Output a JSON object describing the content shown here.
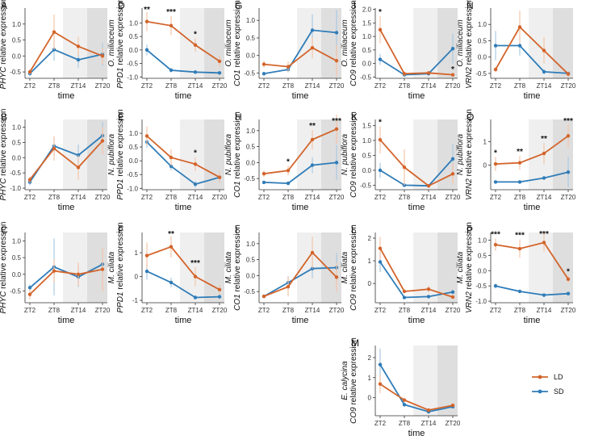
{
  "figure": {
    "xlabel": "time",
    "colors": {
      "LD": "#d3642b",
      "SD": "#2f7cb8",
      "shade_light": "#efefef",
      "shade_dark": "#dedede",
      "error": "#f5c4a7",
      "error_sd": "#a9c9e3"
    },
    "legend": [
      {
        "name": "LD",
        "label": "LD",
        "color": "#d3642b"
      },
      {
        "name": "SD",
        "label": "SD",
        "color": "#2f7cb8"
      }
    ]
  },
  "chart_data": [
    {
      "type": "line",
      "panel": "A",
      "species": "O. miliaceum",
      "gene": "PHYC",
      "ylabel_species": "O. miliaceum",
      "ylabel_gene": "PHYC",
      "ylabel_suffix": " relative expression",
      "categories": [
        "ZT2",
        "ZT8",
        "ZT14",
        "ZT20"
      ],
      "ylim": [
        -0.7,
        1.5
      ],
      "yticks": [
        "-0.5",
        "0.0",
        "0.5",
        "1.0"
      ],
      "ytick_values": [
        -0.5,
        0,
        0.5,
        1
      ],
      "series": [
        {
          "name": "LD",
          "values": [
            -0.5,
            0.75,
            0.3,
            0.0
          ],
          "errors": [
            0.08,
            0.55,
            0.3,
            0.25
          ]
        },
        {
          "name": "SD",
          "values": [
            -0.55,
            0.2,
            -0.12,
            0.05
          ],
          "errors": [
            0.08,
            0.35,
            0.25,
            0.35
          ]
        }
      ],
      "stars": []
    },
    {
      "type": "line",
      "panel": "B",
      "species": "N. pubiflora",
      "gene": "PHYC",
      "ylabel_species": "N. pubiflora",
      "ylabel_gene": "PHYC",
      "ylabel_suffix": " relative expression",
      "categories": [
        "ZT2",
        "ZT8",
        "ZT14",
        "ZT20"
      ],
      "ylim": [
        -1.05,
        1.25
      ],
      "yticks": [
        "-1.0",
        "-0.5",
        "0.0",
        "0.5",
        "1.0"
      ],
      "ytick_values": [
        -1,
        -0.5,
        0,
        0.5,
        1
      ],
      "series": [
        {
          "name": "LD",
          "values": [
            -0.72,
            0.3,
            -0.32,
            0.55
          ],
          "errors": [
            0.1,
            0.4,
            0.4,
            0.45
          ]
        },
        {
          "name": "SD",
          "values": [
            -0.8,
            0.38,
            0.08,
            0.72
          ],
          "errors": [
            0.1,
            0.3,
            0.35,
            0.45
          ]
        }
      ],
      "stars": []
    },
    {
      "type": "line",
      "panel": "C",
      "species": "M. ciliata",
      "gene": "PHYC",
      "ylabel_species": "M. ciliata",
      "ylabel_gene": "PHYC",
      "ylabel_suffix": " relative expression",
      "categories": [
        "ZT2",
        "ZT8",
        "ZT14",
        "ZT20"
      ],
      "ylim": [
        -0.85,
        1.25
      ],
      "yticks": [
        "-0.5",
        "0.0",
        "0.5",
        "1.0"
      ],
      "ytick_values": [
        -0.5,
        0,
        0.5,
        1
      ],
      "series": [
        {
          "name": "LD",
          "values": [
            -0.6,
            0.1,
            0.0,
            0.15
          ],
          "errors": [
            0.15,
            0.35,
            0.35,
            0.65
          ]
        },
        {
          "name": "SD",
          "values": [
            -0.4,
            0.22,
            -0.08,
            0.3
          ],
          "errors": [
            0.1,
            0.85,
            0.3,
            0.4
          ]
        }
      ],
      "stars": []
    },
    {
      "type": "line",
      "panel": "D",
      "species": "O. miliaceum",
      "gene": "PPD1",
      "ylabel_species": "O. miliaceum",
      "ylabel_gene": "PPD1",
      "ylabel_suffix": " relative expression",
      "categories": [
        "ZT2",
        "ZT8",
        "ZT14",
        "ZT20"
      ],
      "ylim": [
        -1.05,
        1.55
      ],
      "yticks": [
        "-1.0",
        "-0.5",
        "0.0",
        "0.5",
        "1.0"
      ],
      "ytick_values": [
        -1,
        -0.5,
        0,
        0.5,
        1
      ],
      "series": [
        {
          "name": "LD",
          "values": [
            1.05,
            0.9,
            0.18,
            -0.42
          ],
          "errors": [
            0.35,
            0.35,
            0.25,
            0.2
          ]
        },
        {
          "name": "SD",
          "values": [
            0.0,
            -0.75,
            -0.82,
            -0.85
          ],
          "errors": [
            0.2,
            0.08,
            0.05,
            0.05
          ]
        }
      ],
      "stars": [
        {
          "category": "ZT2",
          "label": "**"
        },
        {
          "category": "ZT8",
          "label": "***"
        },
        {
          "category": "ZT14",
          "label": "*"
        }
      ]
    },
    {
      "type": "line",
      "panel": "E",
      "species": "N. pubiflora",
      "gene": "PPD1",
      "ylabel_species": "N. pubiflora",
      "ylabel_gene": "PPD1",
      "ylabel_suffix": " relative expression",
      "categories": [
        "ZT2",
        "ZT8",
        "ZT14",
        "ZT20"
      ],
      "ylim": [
        -1.05,
        1.5
      ],
      "yticks": [
        "-1.0",
        "-0.5",
        "0.0",
        "0.5",
        "1.0"
      ],
      "ytick_values": [
        -1,
        -0.5,
        0,
        0.5,
        1
      ],
      "series": [
        {
          "name": "LD",
          "values": [
            0.9,
            0.12,
            -0.12,
            -0.6
          ],
          "errors": [
            0.35,
            0.3,
            0.25,
            0.2
          ]
        },
        {
          "name": "SD",
          "values": [
            0.68,
            -0.2,
            -0.85,
            -0.6
          ],
          "errors": [
            0.2,
            0.15,
            0.12,
            0.15
          ]
        }
      ],
      "stars": [
        {
          "category": "ZT14",
          "label": "*"
        }
      ]
    },
    {
      "type": "line",
      "panel": "F",
      "species": "M. ciliata",
      "gene": "PPD1",
      "ylabel_species": "M. ciliata",
      "ylabel_gene": "PPD1",
      "ylabel_suffix": " relative expression",
      "categories": [
        "ZT2",
        "ZT8",
        "ZT14",
        "ZT20"
      ],
      "ylim": [
        -1.1,
        1.85
      ],
      "yticks": [
        "-1",
        "0",
        "1"
      ],
      "ytick_values": [
        -1,
        0,
        1
      ],
      "series": [
        {
          "name": "LD",
          "values": [
            0.88,
            1.25,
            0.0,
            -0.55
          ],
          "errors": [
            0.55,
            0.45,
            0.4,
            0.2
          ]
        },
        {
          "name": "SD",
          "values": [
            0.22,
            -0.25,
            -0.88,
            -0.85
          ],
          "errors": [
            0.35,
            0.2,
            0.08,
            0.08
          ]
        }
      ],
      "stars": [
        {
          "category": "ZT8",
          "label": "**"
        },
        {
          "category": "ZT14",
          "label": "***"
        }
      ]
    },
    {
      "type": "line",
      "panel": "G",
      "species": "O. miliaceum",
      "gene": "CO1",
      "ylabel_species": "O. miliaceum",
      "ylabel_gene": "CO1",
      "ylabel_suffix": " relative expression",
      "categories": [
        "ZT2",
        "ZT8",
        "ZT14",
        "ZT20"
      ],
      "ylim": [
        -0.65,
        1.35
      ],
      "yticks": [
        "-0.5",
        "0.0",
        "0.5",
        "1.0"
      ],
      "ytick_values": [
        -0.5,
        0,
        0.5,
        1
      ],
      "series": [
        {
          "name": "LD",
          "values": [
            -0.25,
            -0.32,
            0.22,
            -0.15
          ],
          "errors": [
            0.1,
            0.15,
            0.3,
            0.45
          ]
        },
        {
          "name": "SD",
          "values": [
            -0.52,
            -0.4,
            0.72,
            0.65
          ],
          "errors": [
            0.05,
            0.08,
            0.45,
            0.65
          ]
        }
      ],
      "stars": []
    },
    {
      "type": "line",
      "panel": "H",
      "species": "N. pubiflora",
      "gene": "CO1",
      "ylabel_species": "N. pubiflora",
      "ylabel_gene": "CO1",
      "ylabel_suffix": " relative expression",
      "categories": [
        "ZT2",
        "ZT8",
        "ZT14",
        "ZT20"
      ],
      "ylim": [
        -0.85,
        1.35
      ],
      "yticks": [
        "-0.5",
        "0.0",
        "0.5",
        "1.0"
      ],
      "ytick_values": [
        -0.5,
        0,
        0.5,
        1
      ],
      "series": [
        {
          "name": "LD",
          "values": [
            -0.35,
            -0.25,
            0.72,
            1.05
          ],
          "errors": [
            0.1,
            0.15,
            0.3,
            0.45
          ]
        },
        {
          "name": "SD",
          "values": [
            -0.62,
            -0.65,
            -0.08,
            0.0
          ],
          "errors": [
            0.05,
            0.05,
            0.25,
            0.55
          ]
        }
      ],
      "stars": [
        {
          "category": "ZT8",
          "label": "*"
        },
        {
          "category": "ZT14",
          "label": "**"
        },
        {
          "category": "ZT20",
          "label": "***"
        }
      ]
    },
    {
      "type": "line",
      "panel": "I",
      "species": "M. ciliata",
      "gene": "CO1",
      "ylabel_species": "M. ciliata",
      "ylabel_gene": "CO1",
      "ylabel_suffix": " relative expression",
      "categories": [
        "ZT2",
        "ZT8",
        "ZT14",
        "ZT20"
      ],
      "ylim": [
        -0.85,
        1.35
      ],
      "yticks": [
        "-0.5",
        "0.0",
        "0.5",
        "1.0"
      ],
      "ytick_values": [
        -0.5,
        0,
        0.5,
        1
      ],
      "series": [
        {
          "name": "LD",
          "values": [
            -0.65,
            -0.35,
            0.72,
            -0.05
          ],
          "errors": [
            0.05,
            0.3,
            0.5,
            0.45
          ]
        },
        {
          "name": "SD",
          "values": [
            -0.65,
            -0.22,
            0.22,
            0.25
          ],
          "errors": [
            0.05,
            0.2,
            0.3,
            0.45
          ]
        }
      ],
      "stars": []
    },
    {
      "type": "line",
      "panel": "J",
      "species": "O. miliaceum",
      "gene": "CO9",
      "ylabel_species": "O. miliaceum",
      "ylabel_gene": "CO9",
      "ylabel_suffix": " relative expression",
      "categories": [
        "ZT2",
        "ZT8",
        "ZT14",
        "ZT20"
      ],
      "ylim": [
        -0.55,
        2.05
      ],
      "yticks": [
        "-0.5",
        "0.0",
        "0.5",
        "1.0",
        "1.5",
        "2.0"
      ],
      "ytick_values": [
        -0.5,
        0,
        0.5,
        1,
        1.5,
        2
      ],
      "series": [
        {
          "name": "LD",
          "values": [
            1.25,
            -0.38,
            -0.35,
            -0.42
          ],
          "errors": [
            0.5,
            0.08,
            0.05,
            0.05
          ]
        },
        {
          "name": "SD",
          "values": [
            0.15,
            -0.42,
            -0.38,
            0.55
          ],
          "errors": [
            0.2,
            0.05,
            0.05,
            0.55
          ]
        }
      ],
      "stars": [
        {
          "category": "ZT2",
          "label": "*"
        },
        {
          "category": "ZT20",
          "label": "*"
        }
      ]
    },
    {
      "type": "line",
      "panel": "K",
      "species": "N. pubiflora",
      "gene": "CO9",
      "ylabel_species": "N. pubiflora",
      "ylabel_gene": "CO9",
      "ylabel_suffix": " relative expression",
      "categories": [
        "ZT2",
        "ZT8",
        "ZT14",
        "ZT20"
      ],
      "ylim": [
        -0.65,
        1.7
      ],
      "yticks": [
        "-0.5",
        "0.0",
        "0.5",
        "1.0",
        "1.5"
      ],
      "ytick_values": [
        -0.5,
        0,
        0.5,
        1,
        1.5
      ],
      "series": [
        {
          "name": "LD",
          "values": [
            1.02,
            0.1,
            -0.52,
            -0.12
          ],
          "errors": [
            0.45,
            0.6,
            0.05,
            0.35
          ]
        },
        {
          "name": "SD",
          "values": [
            0.0,
            -0.5,
            -0.52,
            0.38
          ],
          "errors": [
            0.25,
            0.05,
            0.05,
            0.5
          ]
        }
      ],
      "stars": [
        {
          "category": "ZT2",
          "label": "*"
        }
      ]
    },
    {
      "type": "line",
      "panel": "L",
      "species": "M. ciliata",
      "gene": "CO9",
      "ylabel_species": "M. ciliata",
      "ylabel_gene": "CO9",
      "ylabel_suffix": " relative expression",
      "categories": [
        "ZT2",
        "ZT8",
        "ZT14",
        "ZT20"
      ],
      "ylim": [
        -0.85,
        2.25
      ],
      "yticks": [
        "0",
        "1",
        "2"
      ],
      "ytick_values": [
        0,
        1,
        2
      ],
      "series": [
        {
          "name": "LD",
          "values": [
            1.55,
            -0.35,
            -0.25,
            -0.6
          ],
          "errors": [
            0.5,
            0.08,
            0.15,
            0.08
          ]
        },
        {
          "name": "SD",
          "values": [
            0.95,
            -0.62,
            -0.58,
            -0.38
          ],
          "errors": [
            0.45,
            0.05,
            0.05,
            0.08
          ]
        }
      ],
      "stars": []
    },
    {
      "type": "line",
      "panel": "M",
      "species": "E. calycina",
      "gene": "CO9",
      "ylabel_species": "E. calycina",
      "ylabel_gene": "CO9",
      "ylabel_suffix": " relative expression",
      "categories": [
        "ZT2",
        "ZT8",
        "ZT14",
        "ZT20"
      ],
      "ylim": [
        -0.9,
        2.6
      ],
      "yticks": [
        "0",
        "1",
        "2"
      ],
      "ytick_values": [
        0,
        1,
        2
      ],
      "series": [
        {
          "name": "LD",
          "values": [
            0.68,
            -0.12,
            -0.62,
            -0.38
          ],
          "errors": [
            0.45,
            0.1,
            0.08,
            0.08
          ]
        },
        {
          "name": "SD",
          "values": [
            1.65,
            -0.35,
            -0.7,
            -0.45
          ],
          "errors": [
            0.8,
            0.1,
            0.08,
            0.08
          ]
        }
      ],
      "stars": []
    },
    {
      "type": "line",
      "panel": "N",
      "species": "O. miliaceum",
      "gene": "VRN2",
      "ylabel_species": "O. miliaceum",
      "ylabel_gene": "VRN2",
      "ylabel_suffix": " relative expression",
      "categories": [
        "ZT2",
        "ZT8",
        "ZT14",
        "ZT20"
      ],
      "ylim": [
        -0.65,
        1.5
      ],
      "yticks": [
        "-0.5",
        "0.0",
        "0.5",
        "1.0"
      ],
      "ytick_values": [
        -0.5,
        0,
        0.5,
        1
      ],
      "series": [
        {
          "name": "LD",
          "values": [
            -0.38,
            0.92,
            0.2,
            -0.52
          ],
          "errors": [
            0.08,
            0.5,
            0.4,
            0.08
          ]
        },
        {
          "name": "SD",
          "values": [
            0.35,
            0.35,
            -0.45,
            -0.5
          ],
          "errors": [
            0.45,
            0.3,
            0.08,
            0.05
          ]
        }
      ],
      "stars": []
    },
    {
      "type": "line",
      "panel": "O",
      "species": "N. pubiflora",
      "gene": "VRN2",
      "ylabel_species": "N. pubiflora",
      "ylabel_gene": "VRN2",
      "ylabel_suffix": " relative expression",
      "categories": [
        "ZT2",
        "ZT8",
        "ZT14",
        "ZT20"
      ],
      "ylim": [
        -1.05,
        1.95
      ],
      "yticks": [
        "0",
        "1"
      ],
      "ytick_values": [
        0,
        1
      ],
      "series": [
        {
          "name": "LD",
          "values": [
            0.05,
            0.1,
            0.5,
            1.25
          ],
          "errors": [
            0.3,
            0.3,
            0.45,
            0.5
          ]
        },
        {
          "name": "SD",
          "values": [
            -0.72,
            -0.72,
            -0.55,
            -0.3
          ],
          "errors": [
            0.05,
            0.05,
            0.05,
            0.65
          ]
        }
      ],
      "stars": [
        {
          "category": "ZT2",
          "label": "*"
        },
        {
          "category": "ZT8",
          "label": "**"
        },
        {
          "category": "ZT14",
          "label": "**"
        },
        {
          "category": "ZT20",
          "label": "***"
        }
      ]
    },
    {
      "type": "line",
      "panel": "P",
      "species": "M. ciliata",
      "gene": "VRN2",
      "ylabel_species": "M. ciliata",
      "ylabel_gene": "VRN2",
      "ylabel_suffix": " relative expression",
      "categories": [
        "ZT2",
        "ZT8",
        "ZT14",
        "ZT20"
      ],
      "ylim": [
        -1.05,
        1.25
      ],
      "yticks": [
        "-1.0",
        "-0.5",
        "0.0",
        "0.5",
        "1.0"
      ],
      "ytick_values": [
        -1,
        -0.5,
        0,
        0.5,
        1
      ],
      "series": [
        {
          "name": "LD",
          "values": [
            0.85,
            0.72,
            0.92,
            -0.28
          ],
          "errors": [
            0.2,
            0.3,
            0.3,
            0.12
          ]
        },
        {
          "name": "SD",
          "values": [
            -0.5,
            -0.68,
            -0.8,
            -0.75
          ],
          "errors": [
            0.08,
            0.05,
            0.05,
            0.05
          ]
        }
      ],
      "stars": [
        {
          "category": "ZT2",
          "label": "***"
        },
        {
          "category": "ZT8",
          "label": "***"
        },
        {
          "category": "ZT14",
          "label": "***"
        },
        {
          "category": "ZT20",
          "label": "*"
        }
      ]
    }
  ]
}
